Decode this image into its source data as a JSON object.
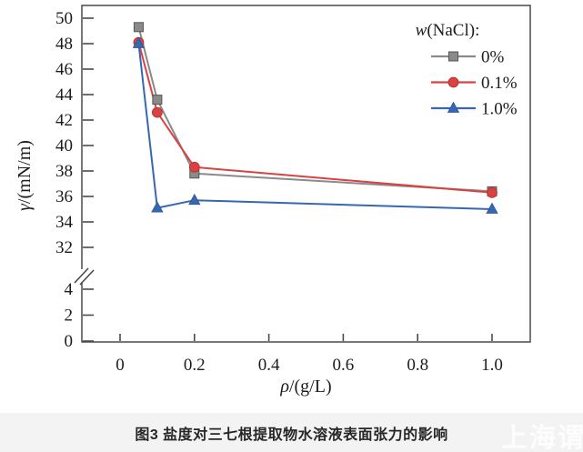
{
  "figure": {
    "caption": "图3  盐度对三七根提取物水溶液表面张力的影响",
    "watermark": "上海谓载"
  },
  "chart_data": {
    "type": "line",
    "xlabel": "ρ/(g/L)",
    "ylabel": "γ/(mN/m)",
    "x_ticks": [
      0,
      0.2,
      0.4,
      0.6,
      0.8,
      1.0
    ],
    "x_range": [
      -0.1,
      1.1
    ],
    "y_axis_break": {
      "lower_range": [
        0,
        4
      ],
      "upper_range": [
        32,
        50
      ],
      "tick_step": 2
    },
    "y_ticks_upper": [
      32,
      34,
      36,
      38,
      40,
      42,
      44,
      46,
      48,
      50
    ],
    "y_ticks_lower": [
      0,
      2,
      4
    ],
    "grid": false,
    "legend": {
      "title": "w(NaCl):",
      "position": "top-right-inside"
    },
    "axis_color": "#4a4a4a",
    "text_color": "#1c1c1c",
    "series": [
      {
        "name": "0%",
        "color": "#8a8a8a",
        "edge": "#555555",
        "marker": "square",
        "x": [
          0.05,
          0.1,
          0.2,
          1.0
        ],
        "y": [
          49.3,
          43.6,
          37.8,
          36.4
        ]
      },
      {
        "name": "0.1%",
        "color": "#d94242",
        "edge": "#ba3232",
        "marker": "circle",
        "x": [
          0.05,
          0.1,
          0.2,
          1.0
        ],
        "y": [
          48.1,
          42.6,
          38.3,
          36.3
        ]
      },
      {
        "name": "1.0%",
        "color": "#3767b1",
        "edge": "#2d569a",
        "marker": "triangle",
        "x": [
          0.05,
          0.1,
          0.2,
          1.0
        ],
        "y": [
          48.0,
          35.1,
          35.7,
          35.0
        ]
      }
    ]
  }
}
